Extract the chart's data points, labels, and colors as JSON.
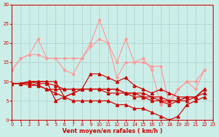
{
  "bg_color": "#cceee8",
  "grid_color": "#aacccc",
  "xlabel": "Vent moyen/en rafales ( km/h )",
  "xlim": [
    0,
    23
  ],
  "ylim": [
    0,
    30
  ],
  "yticks": [
    0,
    5,
    10,
    15,
    20,
    25,
    30
  ],
  "xticks": [
    0,
    1,
    2,
    3,
    4,
    5,
    6,
    7,
    8,
    9,
    10,
    11,
    12,
    13,
    14,
    15,
    16,
    17,
    18,
    19,
    20,
    21,
    22,
    23
  ],
  "lines_light": [
    {
      "x": [
        0,
        1,
        2,
        3,
        4,
        5,
        6,
        7,
        8,
        9,
        10,
        11,
        12,
        13,
        14,
        15,
        16,
        17,
        18,
        19,
        20,
        21,
        22
      ],
      "y": [
        13,
        16,
        17,
        17,
        16,
        16,
        16,
        16,
        16,
        19,
        21,
        20,
        15,
        21,
        15,
        15,
        14,
        14,
        4,
        8,
        10,
        10,
        13
      ]
    },
    {
      "x": [
        0,
        1,
        2,
        3,
        4,
        5,
        6,
        7,
        8,
        9,
        10,
        11,
        12,
        13,
        14,
        15,
        16,
        17,
        18,
        19,
        20,
        21,
        22
      ],
      "y": [
        13,
        16,
        17,
        21,
        16,
        16,
        13,
        12,
        16,
        20,
        26,
        20,
        11,
        15,
        15,
        16,
        13,
        4,
        5,
        8,
        10,
        8,
        13
      ]
    }
  ],
  "lines_dark": [
    {
      "x": [
        0,
        1,
        2,
        3,
        4,
        5,
        6,
        7,
        8,
        9,
        10,
        11,
        12,
        13,
        14,
        15,
        16,
        17,
        18,
        19,
        20,
        21,
        22
      ],
      "y": [
        9.5,
        9.5,
        10,
        10,
        10,
        10,
        6,
        7,
        8,
        12,
        12,
        11,
        10,
        11,
        9,
        8,
        7,
        8,
        7,
        6,
        6,
        6,
        8
      ]
    },
    {
      "x": [
        0,
        1,
        2,
        3,
        4,
        5,
        6,
        7,
        8,
        9,
        10,
        11,
        12,
        13,
        14,
        15,
        16,
        17,
        18,
        19,
        20,
        21,
        22
      ],
      "y": [
        9.5,
        9.5,
        10,
        10,
        10,
        5,
        6,
        7,
        8,
        8,
        8,
        8,
        8,
        7,
        7,
        6,
        5,
        5,
        4,
        5,
        6,
        6,
        8
      ]
    },
    {
      "x": [
        0,
        1,
        2,
        3,
        4,
        5,
        6,
        7,
        8,
        9,
        10,
        11,
        12,
        13,
        14,
        15,
        16,
        17,
        18,
        19,
        20,
        21,
        22
      ],
      "y": [
        9.5,
        9.5,
        10,
        9.5,
        9.5,
        9,
        8,
        8,
        8,
        8,
        8,
        8,
        8,
        7,
        7,
        7,
        6,
        6,
        5,
        5,
        6,
        6,
        8
      ]
    },
    {
      "x": [
        0,
        1,
        2,
        3,
        4,
        5,
        6,
        7,
        8,
        9,
        10,
        11,
        12,
        13,
        14,
        15,
        16,
        17,
        18,
        19,
        20,
        21,
        22
      ],
      "y": [
        9.5,
        9.5,
        9.5,
        9,
        8,
        7,
        6,
        5,
        5,
        5,
        5,
        5,
        4,
        4,
        3,
        3,
        2,
        1,
        0,
        1,
        4,
        5,
        6
      ]
    },
    {
      "x": [
        0,
        1,
        2,
        3,
        4,
        5,
        6,
        7,
        8,
        9,
        10,
        11,
        12,
        13,
        14,
        15,
        16,
        17,
        18,
        19,
        20,
        21,
        22
      ],
      "y": [
        9.5,
        9.5,
        9,
        9,
        8,
        8,
        8,
        8,
        8,
        8,
        8,
        7,
        7,
        7,
        6,
        6,
        6,
        5,
        5,
        5,
        5,
        6,
        7
      ]
    }
  ],
  "color_light": "#ff9999",
  "color_dark": "#cc0000",
  "marker_size_light": 3.0,
  "marker_size_dark": 3.0,
  "linewidth": 0.9,
  "tick_color": "#cc0000",
  "label_color": "#cc0000",
  "spine_color": "#cc0000"
}
